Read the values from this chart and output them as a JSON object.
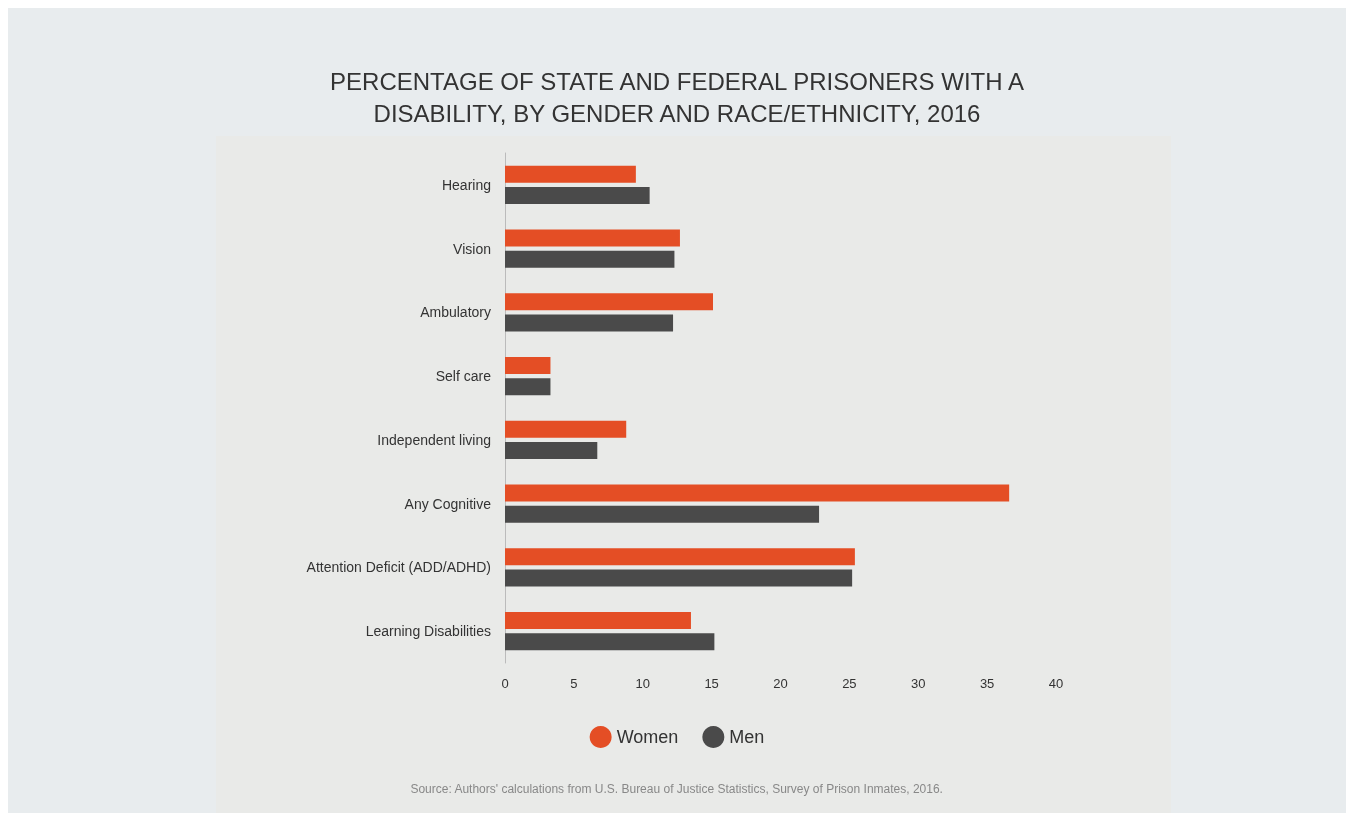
{
  "chart_data": {
    "type": "bar",
    "orientation": "horizontal",
    "title": "PERCENTAGE OF STATE AND FEDERAL PRISONERS WITH A\nDISABILITY, BY GENDER AND RACE/ETHNICITY, 2016",
    "categories": [
      "Hearing",
      "Vision",
      "Ambulatory",
      "Self care",
      "Independent living",
      "Any Cognitive",
      "Attention Deficit (ADD/ADHD)",
      "Learning Disabilities"
    ],
    "series": [
      {
        "name": "Women",
        "color": "#e44e25",
        "values": [
          9.5,
          12.7,
          15.1,
          3.3,
          8.8,
          36.6,
          25.4,
          13.5
        ]
      },
      {
        "name": "Men",
        "color": "#4a4a4a",
        "values": [
          10.5,
          12.3,
          12.2,
          3.3,
          6.7,
          22.8,
          25.2,
          15.2
        ]
      }
    ],
    "xlim": [
      0,
      40
    ],
    "xticks": [
      0,
      5,
      10,
      15,
      20,
      25,
      30,
      35,
      40
    ],
    "grid": false,
    "legend": "bottom",
    "annotations": [
      "Source: Authors' calculations from U.S. Bureau of Justice Statistics, Survey of Prison Inmates, 2016."
    ]
  }
}
